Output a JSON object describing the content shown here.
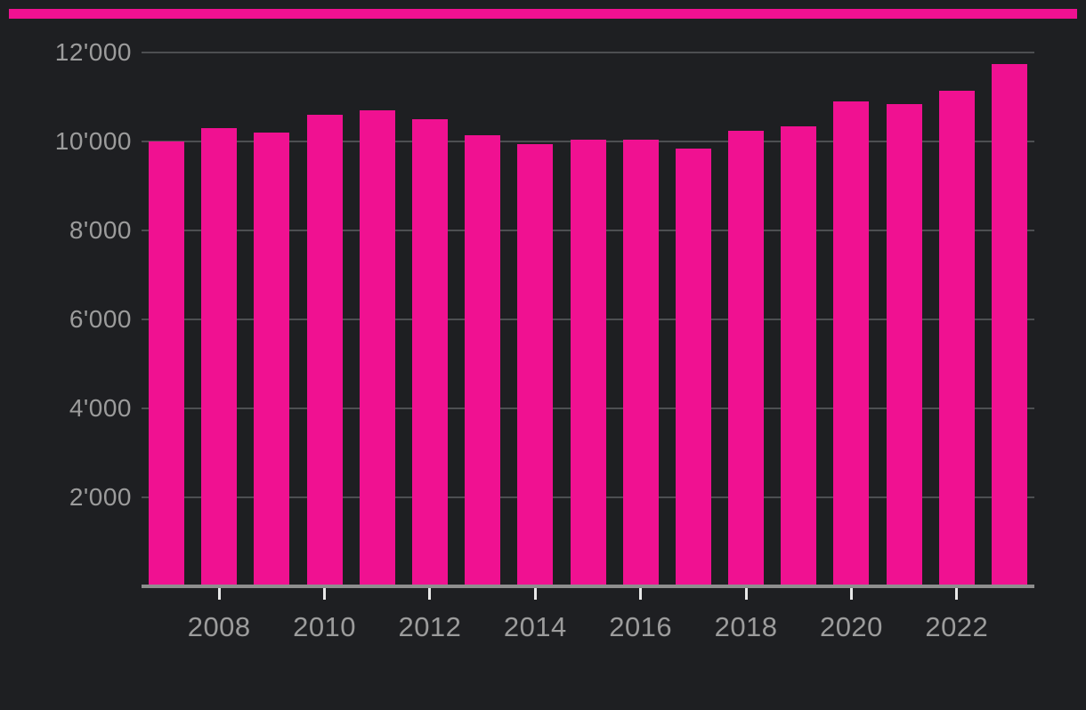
{
  "theme": {
    "background_color": "#1e1f22",
    "accent_color": "#f01191",
    "gridline_color": "#4d4f52",
    "axis_line_color": "#8e8e8e",
    "tick_color": "#e8e8e8",
    "label_color": "#9c9c9c"
  },
  "top_bar": {
    "type": "accent-stripe"
  },
  "chart_data": {
    "type": "bar",
    "title": "",
    "xlabel": "",
    "ylabel": "",
    "categories": [
      2007,
      2008,
      2009,
      2010,
      2011,
      2012,
      2013,
      2014,
      2015,
      2016,
      2017,
      2018,
      2019,
      2020,
      2021,
      2022,
      2023
    ],
    "values": [
      10000,
      10300,
      10200,
      10600,
      10700,
      10500,
      10150,
      9950,
      10050,
      10050,
      9850,
      10250,
      10350,
      10900,
      10850,
      11150,
      11750
    ],
    "bar_color": "#f01191",
    "ylim": [
      0,
      12000
    ],
    "grid": true,
    "legend": "none",
    "y_ticks": [
      {
        "value": 2000,
        "label": "2'000"
      },
      {
        "value": 4000,
        "label": "4'000"
      },
      {
        "value": 6000,
        "label": "6'000"
      },
      {
        "value": 8000,
        "label": "8'000"
      },
      {
        "value": 10000,
        "label": "10'000"
      },
      {
        "value": 12000,
        "label": "12'000"
      }
    ],
    "x_ticks": [
      {
        "year": 2008,
        "label": "2008"
      },
      {
        "year": 2010,
        "label": "2010"
      },
      {
        "year": 2012,
        "label": "2012"
      },
      {
        "year": 2014,
        "label": "2014"
      },
      {
        "year": 2016,
        "label": "2016"
      },
      {
        "year": 2018,
        "label": "2018"
      },
      {
        "year": 2020,
        "label": "2020"
      },
      {
        "year": 2022,
        "label": "2022"
      }
    ],
    "number_format": "swiss-apostrophe"
  }
}
